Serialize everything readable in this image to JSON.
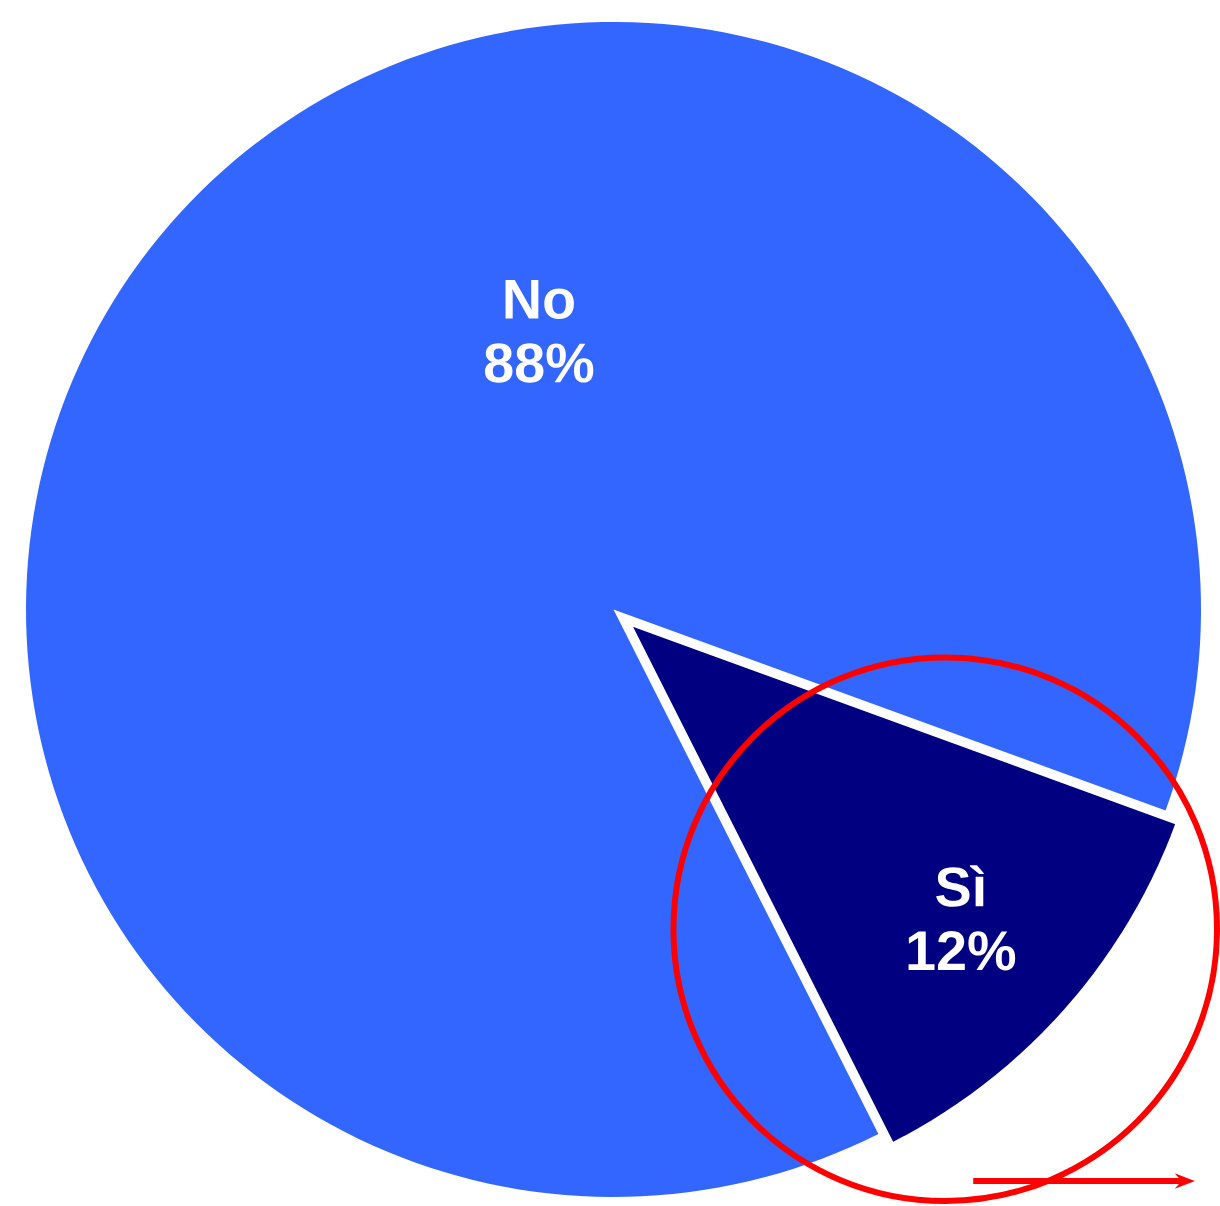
{
  "chart_data": {
    "type": "pie",
    "categories": [
      "No",
      "Sì"
    ],
    "values": [
      88,
      12
    ],
    "value_labels": [
      "88%",
      "12%"
    ],
    "colors": [
      "#3366ff",
      "#000080"
    ]
  }
}
